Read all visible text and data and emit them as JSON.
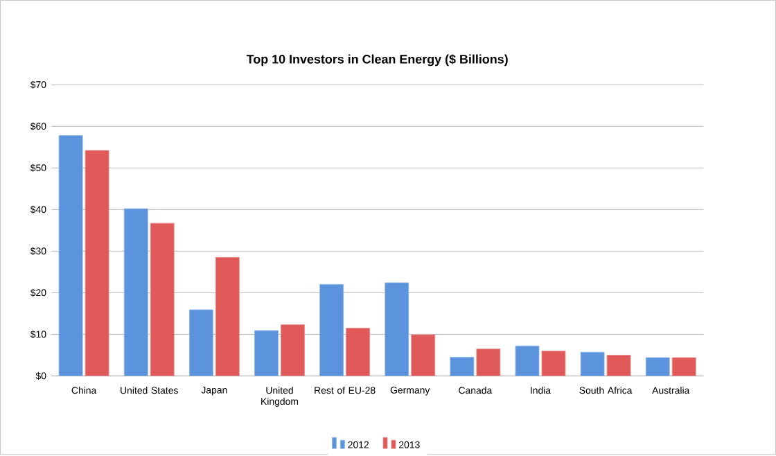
{
  "chart_data": {
    "type": "bar",
    "title": "Top 10 Investors in Clean Energy ($ Billions)",
    "categories": [
      "China",
      "United States",
      "Japan",
      "United Kingdom",
      "Rest of EU-28",
      "Germany",
      "Canada",
      "India",
      "South Africa",
      "Australia"
    ],
    "series": [
      {
        "name": "2012",
        "color": "#5b93dc",
        "values": [
          57.8,
          40.2,
          15.9,
          10.9,
          22.0,
          22.4,
          4.5,
          7.2,
          5.7,
          4.4
        ]
      },
      {
        "name": "2013",
        "color": "#e05a5a",
        "values": [
          54.2,
          36.7,
          28.5,
          12.3,
          11.5,
          9.9,
          6.5,
          6.0,
          5.0,
          4.4
        ]
      }
    ],
    "ylim": [
      0,
      70
    ],
    "yticks": [
      {
        "value": 0,
        "label": "$0"
      },
      {
        "value": 10,
        "label": "$10"
      },
      {
        "value": 20,
        "label": "$20"
      },
      {
        "value": 30,
        "label": "$30"
      },
      {
        "value": 40,
        "label": "$40"
      },
      {
        "value": 50,
        "label": "$50"
      },
      {
        "value": 60,
        "label": "$60"
      },
      {
        "value": 70,
        "label": "$70"
      }
    ],
    "grid": "y",
    "legend": "bottom"
  }
}
